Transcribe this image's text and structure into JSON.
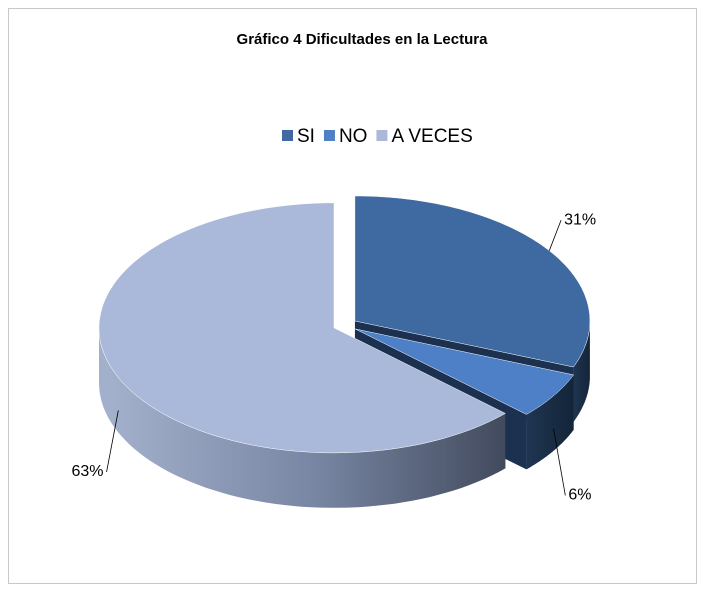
{
  "chart_data": {
    "type": "pie3d",
    "title": "Gráfico 4  Dificultades en la Lectura",
    "categories": [
      "SI",
      "NO",
      "A VECES"
    ],
    "values": [
      31,
      6,
      63
    ],
    "value_labels": [
      "31%",
      "6%",
      "63%"
    ],
    "colors": [
      "#3f6aa1",
      "#4d80c6",
      "#aab9d9"
    ],
    "legend": "top"
  }
}
